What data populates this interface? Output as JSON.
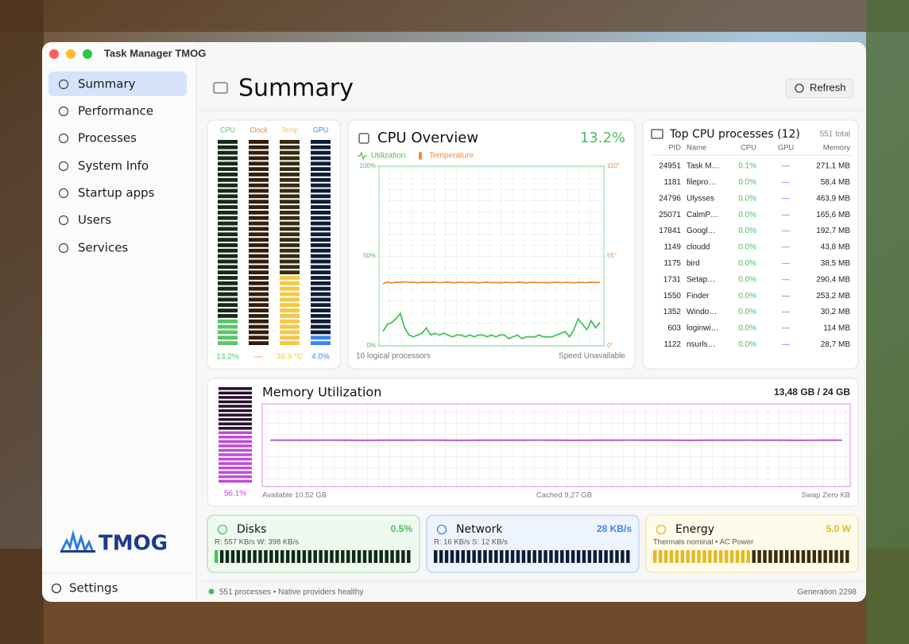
{
  "window": {
    "title": "Task Manager TMOG"
  },
  "sidebar": {
    "items": [
      "Summary",
      "Performance",
      "Processes",
      "System Info",
      "Startup apps",
      "Users",
      "Services"
    ],
    "logo": "TMOG",
    "settings": "Settings"
  },
  "header": {
    "title": "Summary",
    "refresh": "Refresh"
  },
  "meters": [
    {
      "name": "CPU",
      "value": 13.2,
      "label": "13.2%",
      "color": "#5cc46a"
    },
    {
      "name": "Clock",
      "value": null,
      "label": "—",
      "color": "#e8823a"
    },
    {
      "name": "Temp",
      "value": 38.9,
      "label": "38.9 °C",
      "color": "#f5c842"
    },
    {
      "name": "GPU",
      "value": 4.0,
      "label": "4.0%",
      "color": "#3d86ea"
    }
  ],
  "memory_meter": {
    "value": 56.1,
    "label": "56.1%",
    "color": "#c04ad8"
  },
  "chart_data": [
    {
      "type": "line",
      "title": "CPU Overview",
      "current": "13.2%",
      "current_color": "#4cbf5c",
      "ylim": [
        0,
        100
      ],
      "yticks": [
        {
          "value": 0,
          "label": "0%"
        },
        {
          "value": 50,
          "label": "50%"
        },
        {
          "value": 100,
          "label": "100%"
        }
      ],
      "y2lim": [
        0,
        110
      ],
      "y2ticks": [
        {
          "value": 0,
          "label": "0°"
        },
        {
          "value": 55,
          "label": "55°"
        },
        {
          "value": 110,
          "label": "110°"
        }
      ],
      "grid": true,
      "series": [
        {
          "name": "Utilization",
          "color": "#4cbf5c",
          "values": [
            8,
            12,
            13,
            15,
            18,
            10,
            6,
            5,
            6,
            7,
            10,
            6,
            7,
            6,
            7,
            6,
            5,
            6,
            6,
            5,
            6,
            5,
            6,
            6,
            5,
            6,
            5,
            6,
            6,
            4,
            5,
            6,
            4,
            5,
            5,
            5,
            6,
            5,
            5,
            5,
            6,
            7,
            8,
            5,
            9,
            15,
            12,
            9,
            14,
            10,
            13
          ]
        },
        {
          "name": "Temperature",
          "color": "#f08a3c",
          "axis": "y2",
          "values": [
            38,
            39,
            38.5,
            39,
            38.8,
            39.2,
            38.9,
            39,
            38.6,
            39,
            38.8,
            38.9,
            39.1,
            38.7,
            38.9,
            39,
            38.6,
            38.8,
            39,
            38.7,
            38.9,
            38.8,
            38.6,
            38.9,
            39,
            38.7,
            38.8,
            38.6,
            38.9,
            38.8,
            38.7,
            39,
            38.8,
            38.6,
            38.9,
            38.8,
            38.7,
            38.9,
            38.6,
            38.8,
            39,
            38.7,
            38.9,
            38.8,
            38.6,
            38.9,
            38.8,
            38.7,
            39,
            38.8,
            38.9
          ]
        }
      ],
      "footer_left": "10 logical processors",
      "footer_right": "Speed Unavailable"
    },
    {
      "type": "line",
      "title": "Memory Utilization",
      "current": "13,48 GB / 24 GB",
      "ylim": [
        0,
        100
      ],
      "grid": true,
      "series": [
        {
          "color": "#b44ad0",
          "values": [
            56.2,
            56.1,
            56.1,
            56.2,
            56.1,
            56,
            56.1,
            56.1,
            56.2,
            56.1,
            56,
            56.1,
            56.1,
            56.1,
            56.2,
            56.1,
            56,
            56.1,
            56.1,
            56.2,
            56.1,
            56.1,
            56,
            56.1,
            56.1,
            56.2,
            56.1,
            56.1,
            56,
            56.1,
            56.2
          ]
        }
      ],
      "footer": [
        "Available 10,52 GB",
        "Cached 9,27 GB",
        "Swap Zero KB"
      ]
    }
  ],
  "processes": {
    "title": "Top CPU processes (12)",
    "total": "551 total",
    "columns": [
      "PID",
      "Name",
      "CPU",
      "GPU",
      "Memory"
    ],
    "rows": [
      [
        "24951",
        "Task M…",
        "0.1%",
        "—",
        "271,1 MB"
      ],
      [
        "1181",
        "filepro…",
        "0.0%",
        "—",
        "58,4 MB"
      ],
      [
        "24796",
        "Ulysses",
        "0.0%",
        "—",
        "463,9 MB"
      ],
      [
        "25071",
        "CalmP…",
        "0.0%",
        "—",
        "165,6 MB"
      ],
      [
        "17841",
        "Googl…",
        "0.0%",
        "—",
        "192,7 MB"
      ],
      [
        "1149",
        "cloudd",
        "0.0%",
        "—",
        "43,8 MB"
      ],
      [
        "1175",
        "bird",
        "0.0%",
        "—",
        "38,5 MB"
      ],
      [
        "1731",
        "Setap…",
        "0.0%",
        "—",
        "290,4 MB"
      ],
      [
        "1550",
        "Finder",
        "0.0%",
        "—",
        "253,2 MB"
      ],
      [
        "1352",
        "Windo…",
        "0.0%",
        "—",
        "30,2 MB"
      ],
      [
        "603",
        "loginwi…",
        "0.0%",
        "—",
        "114 MB"
      ],
      [
        "1122",
        "nsurls…",
        "0.0%",
        "—",
        "28,7 MB"
      ]
    ]
  },
  "cards": [
    {
      "title": "Disks",
      "value": "0.5%",
      "detail": "R: 557 KB/s  W: 398 KB/s",
      "color": "#4cbf5c"
    },
    {
      "title": "Network",
      "value": "28 KB/s",
      "detail": "R: 16 KB/s  S: 12 KB/s",
      "color": "#3d86ea"
    },
    {
      "title": "Energy",
      "value": "5.0 W",
      "detail": "Thermals nominal • AC Power",
      "color": "#e6b91e"
    }
  ],
  "status": {
    "left": "551 processes • Native providers healthy",
    "right": "Generation 2298"
  }
}
